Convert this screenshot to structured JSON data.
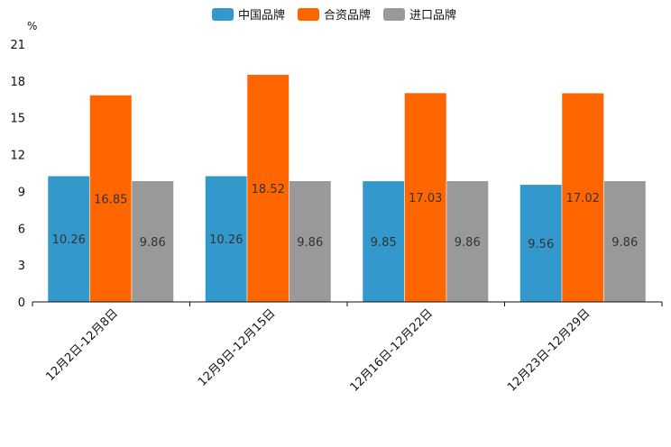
{
  "chart_data": {
    "type": "bar",
    "title": "",
    "ylabel": "%",
    "xlabel": "",
    "ylim": [
      0,
      21
    ],
    "yticks": [
      0,
      3,
      6,
      9,
      12,
      15,
      18,
      21
    ],
    "grid": false,
    "legend_position": "top-center",
    "categories": [
      "12月2日-12月8日",
      "12月9日-12月15日",
      "12月16日-12月22日",
      "12月23日-12月29日"
    ],
    "series": [
      {
        "name": "中国品牌",
        "color": "#3399cc",
        "values": [
          10.26,
          10.26,
          9.85,
          9.56
        ]
      },
      {
        "name": "合资品牌",
        "color": "#ff6600",
        "values": [
          16.85,
          18.52,
          17.03,
          17.02
        ]
      },
      {
        "name": "进口品牌",
        "color": "#999999",
        "values": [
          9.86,
          9.86,
          9.86,
          9.86
        ]
      }
    ]
  }
}
